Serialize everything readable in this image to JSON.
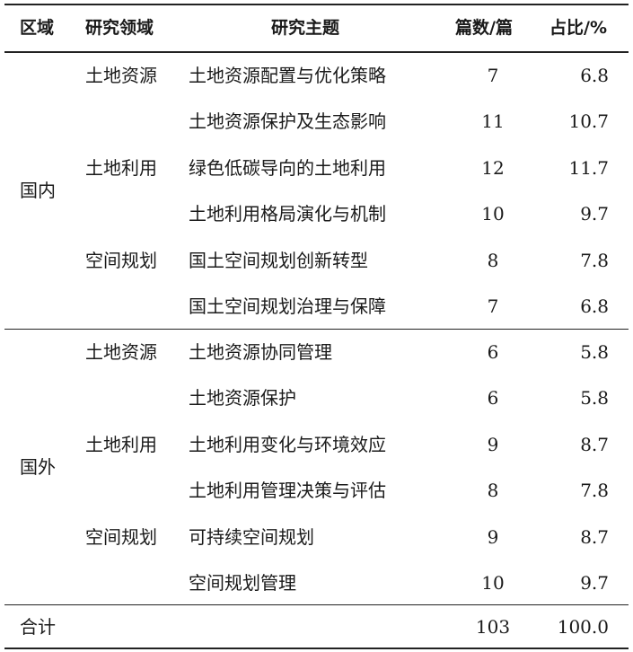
{
  "header": {
    "region": "区域",
    "field": "研究领域",
    "topic": "研究主题",
    "count": "篇数/篇",
    "share": "占比/%"
  },
  "groups": [
    {
      "region": "国内",
      "rows": [
        {
          "field": "土地资源",
          "topic": "土地资源配置与优化策略",
          "count": "7",
          "share": "6.8"
        },
        {
          "field": "",
          "topic": "土地资源保护及生态影响",
          "count": "11",
          "share": "10.7"
        },
        {
          "field": "土地利用",
          "topic": "绿色低碳导向的土地利用",
          "count": "12",
          "share": "11.7"
        },
        {
          "field": "",
          "topic": "土地利用格局演化与机制",
          "count": "10",
          "share": "9.7"
        },
        {
          "field": "空间规划",
          "topic": "国土空间规划创新转型",
          "count": "8",
          "share": "7.8"
        },
        {
          "field": "",
          "topic": "国土空间规划治理与保障",
          "count": "7",
          "share": "6.8"
        }
      ]
    },
    {
      "region": "国外",
      "rows": [
        {
          "field": "土地资源",
          "topic": "土地资源协同管理",
          "count": "6",
          "share": "5.8"
        },
        {
          "field": "",
          "topic": "土地资源保护",
          "count": "6",
          "share": "5.8"
        },
        {
          "field": "土地利用",
          "topic": "土地利用变化与环境效应",
          "count": "9",
          "share": "8.7"
        },
        {
          "field": "",
          "topic": "土地利用管理决策与评估",
          "count": "8",
          "share": "7.8"
        },
        {
          "field": "空间规划",
          "topic": "可持续空间规划",
          "count": "9",
          "share": "8.7"
        },
        {
          "field": "",
          "topic": "空间规划管理",
          "count": "10",
          "share": "9.7"
        }
      ]
    }
  ],
  "total": {
    "label": "合计",
    "count": "103",
    "share": "100.0"
  }
}
